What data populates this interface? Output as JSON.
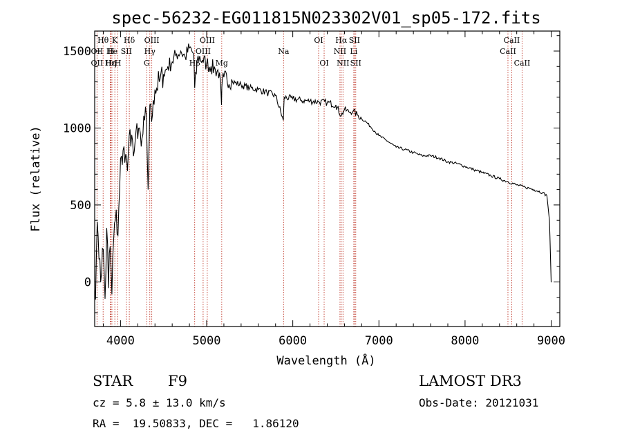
{
  "chart_data": {
    "type": "line",
    "title": "spec-56232-EG011815N023302V01_sp05-172.fits",
    "xlabel": "Wavelength (Å)",
    "ylabel": "Flux (relative)",
    "xlim": [
      3700,
      9100
    ],
    "ylim": [
      -290,
      1630
    ],
    "xticks": [
      4000,
      5000,
      6000,
      7000,
      8000,
      9000
    ],
    "yticks": [
      0,
      500,
      1000,
      1500
    ],
    "series": [
      {
        "x": [
          3700,
          3720,
          3740,
          3760,
          3780,
          3800,
          3820,
          3840,
          3860,
          3880,
          3900,
          3920,
          3940,
          3960,
          3980,
          4000,
          4020,
          4040,
          4060,
          4080,
          4100,
          4120,
          4140,
          4160,
          4180,
          4200,
          4220,
          4240,
          4260,
          4280,
          4300,
          4320,
          4340,
          4360,
          4380,
          4400,
          4450,
          4500,
          4550,
          4600,
          4650,
          4700,
          4750,
          4800,
          4850,
          4861,
          4900,
          4950,
          5000,
          5050,
          5100,
          5150,
          5172,
          5180,
          5200,
          5300,
          5400,
          5500,
          5600,
          5700,
          5800,
          5890,
          5900,
          6000,
          6100,
          6200,
          6300,
          6400,
          6500,
          6563,
          6600,
          6650,
          6700,
          6750,
          6800,
          6850,
          6900,
          6950,
          7000,
          7100,
          7200,
          7300,
          7400,
          7500,
          7600,
          7700,
          7800,
          7900,
          8000,
          8100,
          8200,
          8300,
          8400,
          8500,
          8600,
          8700,
          8800,
          8900,
          8950,
          8980,
          8990,
          9000,
          9005
        ],
        "y": [
          -50,
          180,
          300,
          150,
          60,
          210,
          -110,
          350,
          -40,
          230,
          -80,
          270,
          400,
          310,
          480,
          800,
          760,
          880,
          830,
          720,
          950,
          880,
          920,
          850,
          980,
          930,
          1000,
          880,
          960,
          1050,
          1080,
          600,
          1150,
          1040,
          1180,
          1250,
          1300,
          1350,
          1400,
          1430,
          1480,
          1500,
          1460,
          1520,
          1480,
          1260,
          1470,
          1440,
          1420,
          1400,
          1380,
          1360,
          1150,
          1300,
          1330,
          1300,
          1280,
          1260,
          1250,
          1230,
          1210,
          1050,
          1200,
          1190,
          1180,
          1175,
          1170,
          1165,
          1150,
          1080,
          1120,
          1105,
          1110,
          1085,
          1060,
          1040,
          1010,
          980,
          950,
          915,
          875,
          860,
          840,
          820,
          820,
          805,
          780,
          770,
          750,
          730,
          710,
          690,
          670,
          650,
          630,
          615,
          600,
          580,
          560,
          400,
          200,
          0,
          0
        ]
      }
    ],
    "line_labels": [
      {
        "text": "Hθ",
        "x": 3798,
        "row": 1
      },
      {
        "text": "K",
        "x": 3934,
        "row": 1
      },
      {
        "text": "Hδ",
        "x": 4102,
        "row": 1
      },
      {
        "text": "OIII",
        "x": 4363,
        "row": 1
      },
      {
        "text": "OIII",
        "x": 5007,
        "row": 1
      },
      {
        "text": "OI",
        "x": 6300,
        "row": 1
      },
      {
        "text": "Hα",
        "x": 6563,
        "row": 1
      },
      {
        "text": "SII",
        "x": 6716,
        "row": 1
      },
      {
        "text": "CaII",
        "x": 8542,
        "row": 1
      },
      {
        "text": "OII",
        "x": 3727,
        "row": 2
      },
      {
        "text": "H",
        "x": 3889,
        "row": 2
      },
      {
        "text": "He",
        "x": 3900,
        "row": 2
      },
      {
        "text": "SII",
        "x": 4068,
        "row": 2
      },
      {
        "text": "Hγ",
        "x": 4340,
        "row": 2
      },
      {
        "text": "OIII",
        "x": 4959,
        "row": 2
      },
      {
        "text": "Na",
        "x": 5893,
        "row": 2
      },
      {
        "text": "NII",
        "x": 6548,
        "row": 2
      },
      {
        "text": "Li",
        "x": 6708,
        "row": 2
      },
      {
        "text": "CaII",
        "x": 8498,
        "row": 2
      },
      {
        "text": "OII",
        "x": 3727,
        "row": 3
      },
      {
        "text": "Hε",
        "x": 3880,
        "row": 3
      },
      {
        "text": "Hη",
        "x": 3889,
        "row": 3
      },
      {
        "text": "H",
        "x": 3969,
        "row": 3
      },
      {
        "text": "G",
        "x": 4304,
        "row": 3
      },
      {
        "text": "Hβ",
        "x": 4861,
        "row": 3
      },
      {
        "text": "Mg",
        "x": 5175,
        "row": 3
      },
      {
        "text": "OI",
        "x": 6364,
        "row": 3
      },
      {
        "text": "NII",
        "x": 6583,
        "row": 3
      },
      {
        "text": "SII",
        "x": 6731,
        "row": 3
      },
      {
        "text": "CaII",
        "x": 8662,
        "row": 3
      }
    ]
  },
  "info": {
    "class": "STAR",
    "subclass": "F9",
    "survey": "LAMOST DR3",
    "cz": "cz = 5.8 ± 13.0 km/s",
    "obs_date": "Obs-Date: 20121031",
    "radec": "RA =  19.50833, DEC =   1.86120"
  }
}
